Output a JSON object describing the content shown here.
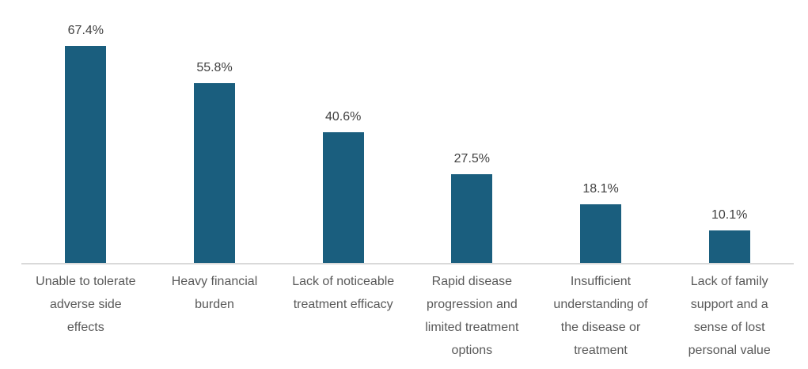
{
  "chart_data": {
    "type": "bar",
    "title": "",
    "xlabel": "",
    "ylabel": "",
    "categories": [
      "Unable to tolerate adverse side effects",
      "Heavy financial burden",
      "Lack of noticeable treatment efficacy",
      "Rapid disease progression and limited treatment options",
      "Insufficient understanding of the disease or treatment",
      "Lack of family support and a sense of lost personal value"
    ],
    "category_lines": [
      [
        "Unable to tolerate",
        "adverse side",
        "effects"
      ],
      [
        "Heavy financial",
        "burden"
      ],
      [
        "Lack of noticeable",
        "treatment efficacy"
      ],
      [
        "Rapid disease",
        "progression and",
        "limited treatment",
        "options"
      ],
      [
        "Insufficient",
        "understanding of",
        "the disease or",
        "treatment"
      ],
      [
        "Lack of family",
        "support and a",
        "sense of lost",
        "personal value"
      ]
    ],
    "values": [
      67.4,
      55.8,
      40.6,
      27.5,
      18.1,
      10.1
    ],
    "value_labels": [
      "67.4%",
      "55.8%",
      "40.6%",
      "27.5%",
      "18.1%",
      "10.1%"
    ],
    "ylim": [
      0,
      80
    ],
    "grid": false,
    "legend": false,
    "colors": {
      "bar": "#1A5E7E",
      "value_label": "#404040",
      "category_label": "#595959",
      "axis_line": "#D9D9D9",
      "background": "#FFFFFF"
    }
  }
}
